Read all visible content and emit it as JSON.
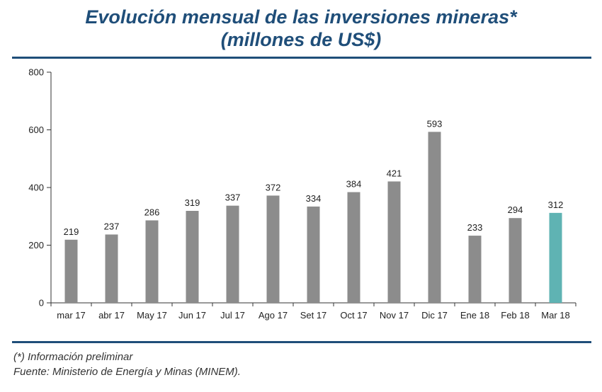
{
  "header": {
    "title_line1": "Evolución mensual de las inversiones mineras*",
    "title_line2": "(millones de US$)"
  },
  "colors": {
    "title": "#1f4e79",
    "bar": "#8c8c8c",
    "highlight_bar": "#5fb3b3",
    "axis": "#333333"
  },
  "chart_data": {
    "type": "bar",
    "categories": [
      "mar 17",
      "abr 17",
      "May 17",
      "Jun 17",
      "Jul 17",
      "Ago 17",
      "Set 17",
      "Oct 17",
      "Nov 17",
      "Dic 17",
      "Ene 18",
      "Feb 18",
      "Mar 18"
    ],
    "values": [
      219,
      237,
      286,
      319,
      337,
      372,
      334,
      384,
      421,
      593,
      233,
      294,
      312
    ],
    "highlight_index": 12,
    "ylim": [
      0,
      800
    ],
    "yticks": [
      0,
      200,
      400,
      600,
      800
    ],
    "grid": false,
    "legend": "none",
    "data_labels": true
  },
  "footnotes": {
    "note": "(*) Información preliminar",
    "source": "Fuente: Ministerio de Energía y Minas (MINEM)."
  }
}
